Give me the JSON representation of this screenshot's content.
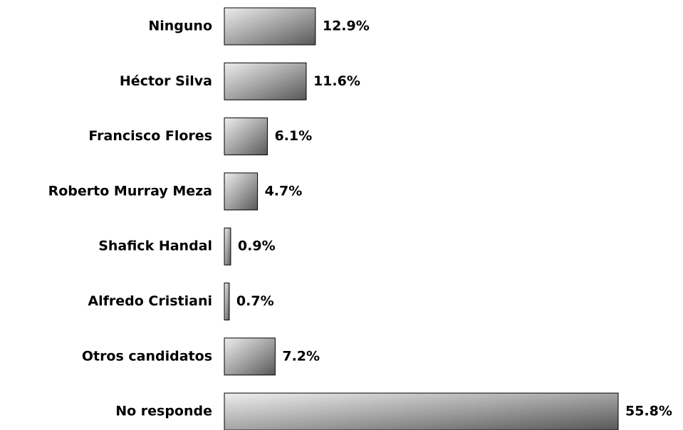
{
  "chart_data": {
    "type": "hbar",
    "categories": [
      "Ninguno",
      "Héctor Silva",
      "Francisco Flores",
      "Roberto Murray Meza",
      "Shafick Handal",
      "Alfredo Cristiani",
      "Otros candidatos",
      "No responde"
    ],
    "values": [
      12.9,
      11.6,
      6.1,
      4.7,
      0.9,
      0.7,
      7.2,
      55.8
    ],
    "value_labels": [
      "12.9%",
      "11.6%",
      "6.1%",
      "4.7%",
      "0.9%",
      "0.7%",
      "7.2%",
      "55.8%"
    ]
  }
}
